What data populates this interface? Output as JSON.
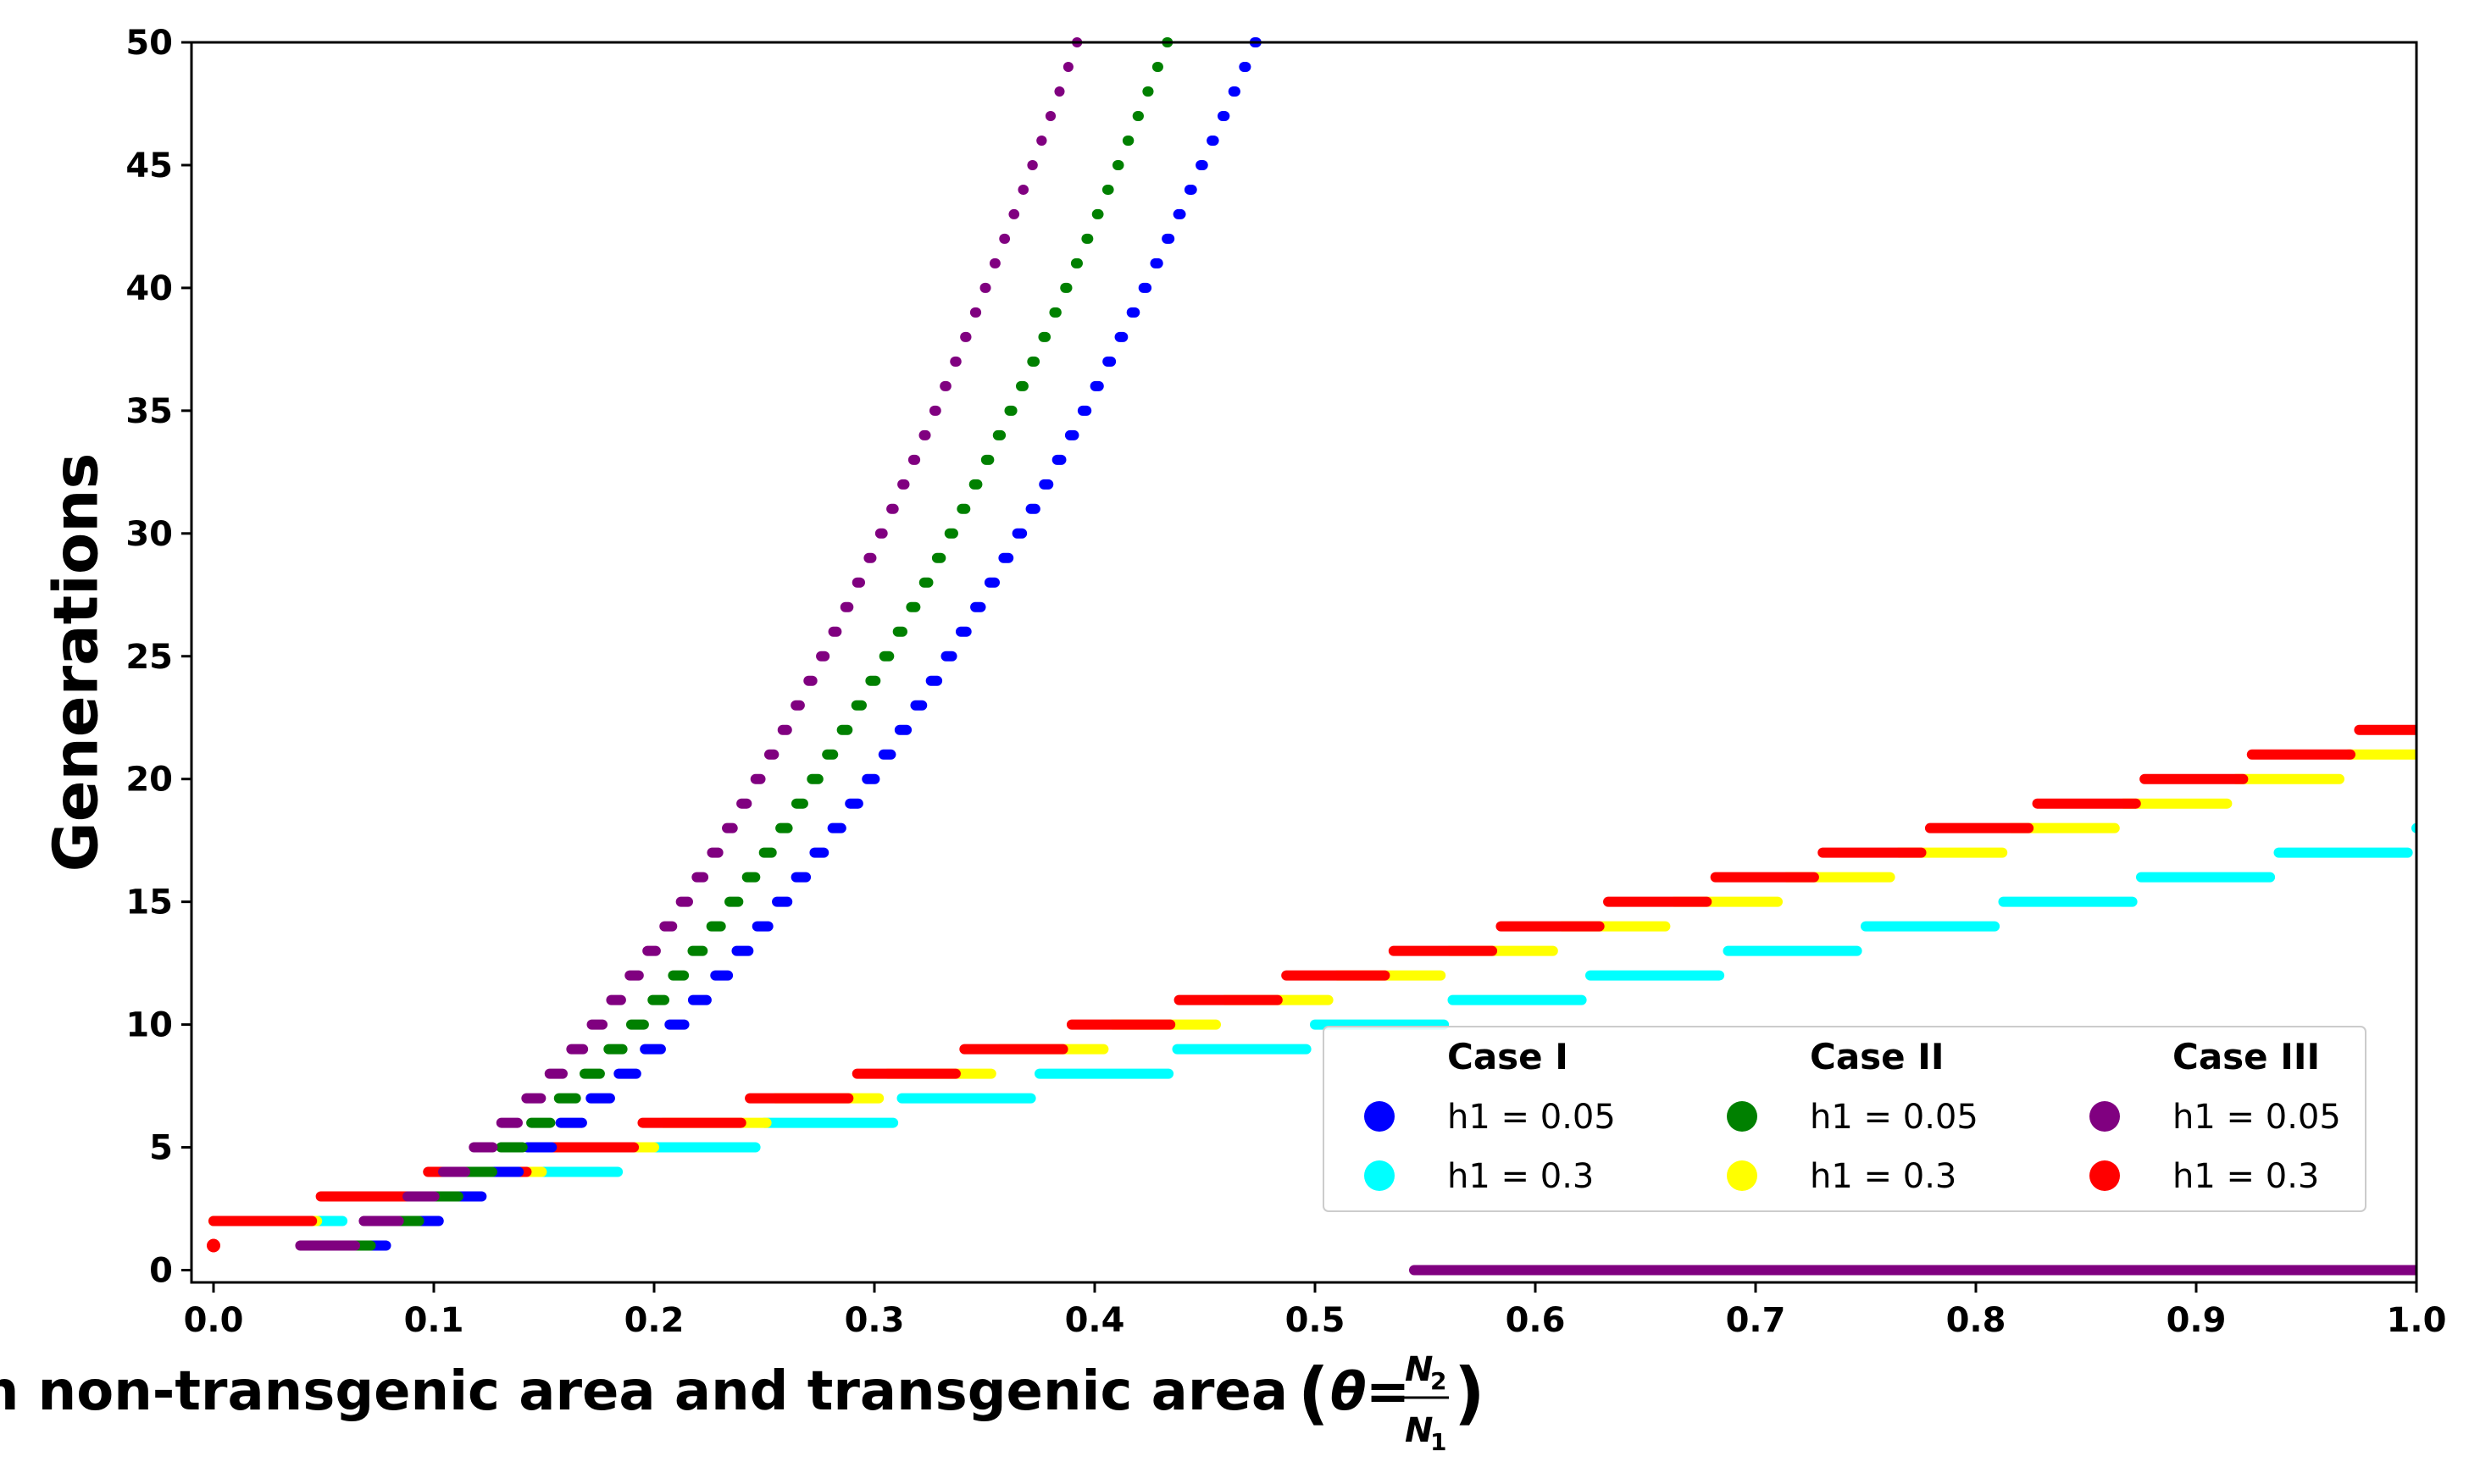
{
  "chart_data": {
    "type": "scatter",
    "title": "",
    "xlabel": "Ratio between non-transgenic area and transgenic area",
    "xlabel_math": "(θ = N2/N1)",
    "ylabel": "Generations",
    "xlim": [
      -0.01,
      1.0
    ],
    "ylim": [
      -0.5,
      50
    ],
    "xticks": [
      "0.0",
      "0.1",
      "0.2",
      "0.3",
      "0.4",
      "0.5",
      "0.6",
      "0.7",
      "0.8",
      "0.9",
      "1.0"
    ],
    "yticks": [
      "0",
      "5",
      "10",
      "15",
      "20",
      "25",
      "30",
      "35",
      "40",
      "45",
      "50"
    ],
    "grid": false,
    "legend": {
      "placement": "lower right",
      "columns": [
        {
          "title": "Case I",
          "entries": [
            {
              "label": "h1 = 0.05",
              "color": "#0000ff"
            },
            {
              "label": "h1 = 0.3",
              "color": "#00ffff"
            }
          ]
        },
        {
          "title": "Case II",
          "entries": [
            {
              "label": "h1 = 0.05",
              "color": "#008000"
            },
            {
              "label": "h1 = 0.3",
              "color": "#ffff00"
            }
          ]
        },
        {
          "title": "Case III",
          "entries": [
            {
              "label": "h1 = 0.05",
              "color": "#800080"
            },
            {
              "label": "h1 = 0.3",
              "color": "#ff0000"
            }
          ]
        }
      ]
    },
    "series": [
      {
        "color": "#0000ff",
        "model": "high_h05",
        "scale": 0.475,
        "zero_start": 0.59
      },
      {
        "color": "#008000",
        "model": "high_h05",
        "scale": 0.435,
        "zero_start": 0.56
      },
      {
        "color": "#800080",
        "model": "high_h05",
        "scale": 0.394,
        "zero_start": 0.545
      },
      {
        "color": "#00ffff",
        "model": "linear_h3",
        "step": 0.0625
      },
      {
        "color": "#ffff00",
        "model": "linear_h3",
        "step": 0.051
      },
      {
        "color": "#ff0000",
        "model": "linear_h3",
        "step": 0.0487
      }
    ]
  }
}
